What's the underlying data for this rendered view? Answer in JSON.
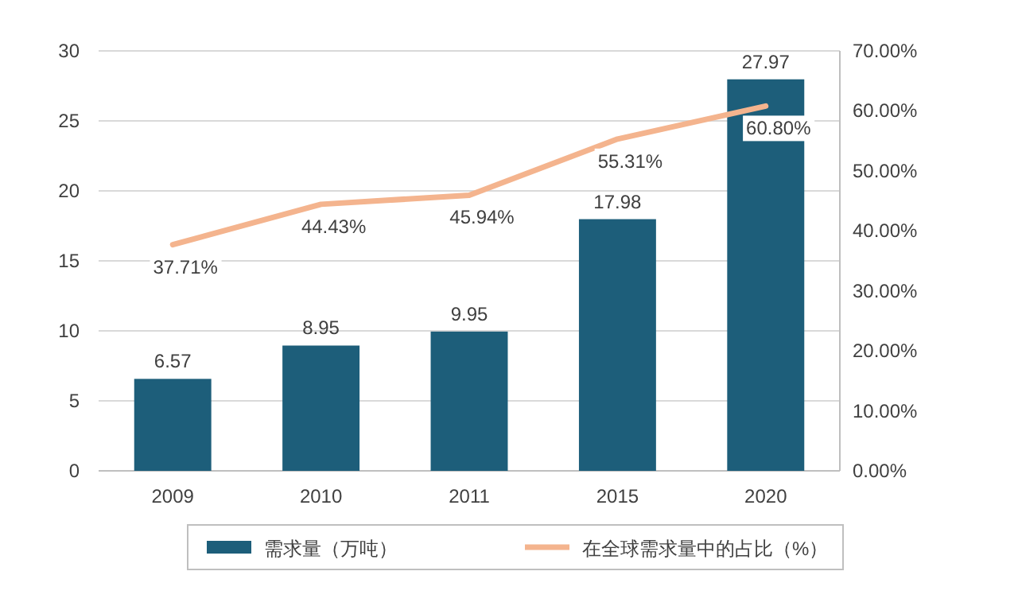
{
  "chart_data": {
    "type": "bar",
    "categories": [
      "2009",
      "2010",
      "2011",
      "2015",
      "2020"
    ],
    "series": [
      {
        "name": "需求量（万吨）",
        "color": "#1d5e7a",
        "values": [
          6.57,
          8.95,
          9.95,
          17.98,
          27.97
        ],
        "value_labels": [
          "6.57",
          "8.95",
          "9.95",
          "17.98",
          "27.97"
        ]
      },
      {
        "name": "在全球需求量中的占比（%）",
        "type": "line",
        "axis": "y2",
        "color": "#f4b48e",
        "values": [
          37.71,
          44.43,
          45.94,
          55.31,
          60.8
        ],
        "value_labels": [
          "37.71%",
          "44.43%",
          "45.94%",
          "55.31%",
          "60.80%"
        ]
      }
    ],
    "ylim": [
      0,
      30
    ],
    "yticks": [
      0,
      5,
      10,
      15,
      20,
      25,
      30
    ],
    "y2lim": [
      0,
      70
    ],
    "y2ticks": [
      {
        "value": 0,
        "label": "0.00%"
      },
      {
        "value": 10,
        "label": "10.00%"
      },
      {
        "value": 20,
        "label": "20.00%"
      },
      {
        "value": 30,
        "label": "30.00%"
      },
      {
        "value": 40,
        "label": "40.00%"
      },
      {
        "value": 50,
        "label": "50.00%"
      },
      {
        "value": 60,
        "label": "60.00%"
      },
      {
        "value": 70,
        "label": "70.00%"
      }
    ],
    "grid": "y",
    "legend": "bottom",
    "marker": "none",
    "line_style": "solid"
  }
}
